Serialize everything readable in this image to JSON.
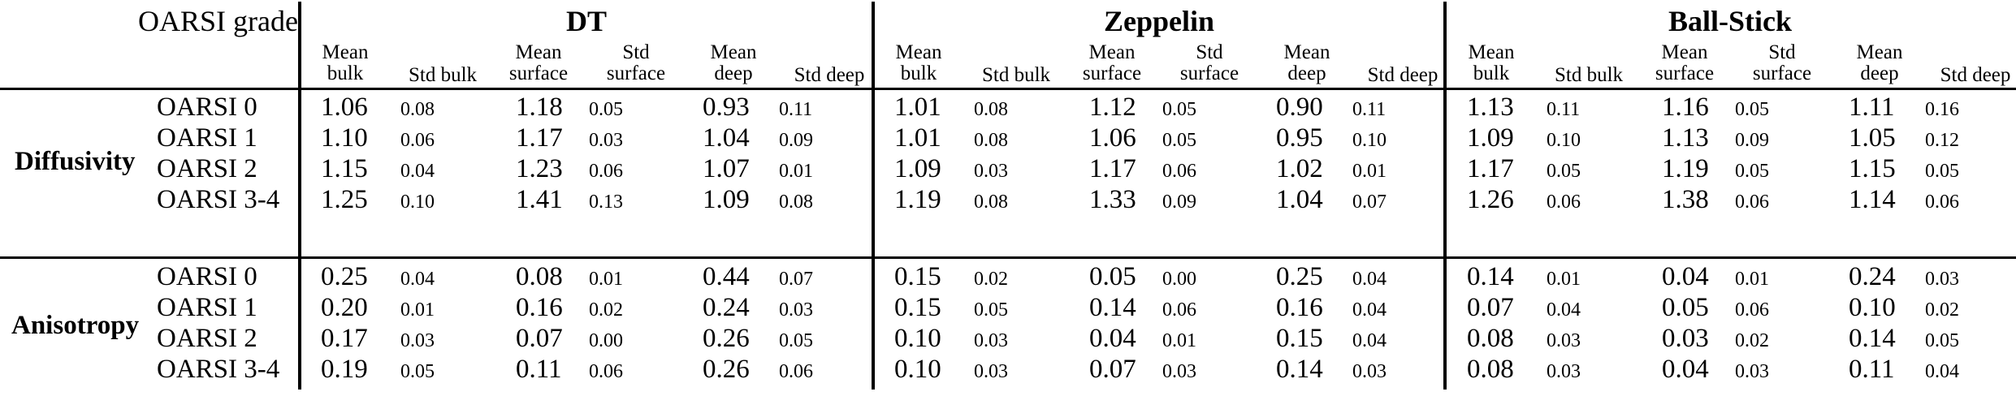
{
  "header": {
    "grade_label": "OARSI grade",
    "models": [
      "DT",
      "Zeppelin",
      "Ball-Stick"
    ],
    "columns": [
      [
        "Mean",
        "bulk"
      ],
      [
        "Std bulk"
      ],
      [
        "Mean",
        "surface"
      ],
      [
        "Std",
        "surface"
      ],
      [
        "Mean",
        "deep"
      ],
      [
        "Std deep"
      ]
    ]
  },
  "groups": [
    {
      "name": "Diffusivity",
      "rows": [
        {
          "grade": "OARSI 0",
          "values": [
            "1.06",
            "0.08",
            "1.18",
            "0.05",
            "0.93",
            "0.11",
            "1.01",
            "0.08",
            "1.12",
            "0.05",
            "0.90",
            "0.11",
            "1.13",
            "0.11",
            "1.16",
            "0.05",
            "1.11",
            "0.16"
          ]
        },
        {
          "grade": "OARSI 1",
          "values": [
            "1.10",
            "0.06",
            "1.17",
            "0.03",
            "1.04",
            "0.09",
            "1.01",
            "0.08",
            "1.06",
            "0.05",
            "0.95",
            "0.10",
            "1.09",
            "0.10",
            "1.13",
            "0.09",
            "1.05",
            "0.12"
          ]
        },
        {
          "grade": "OARSI 2",
          "values": [
            "1.15",
            "0.04",
            "1.23",
            "0.06",
            "1.07",
            "0.01",
            "1.09",
            "0.03",
            "1.17",
            "0.06",
            "1.02",
            "0.01",
            "1.17",
            "0.05",
            "1.19",
            "0.05",
            "1.15",
            "0.05"
          ]
        },
        {
          "grade": "OARSI 3-4",
          "values": [
            "1.25",
            "0.10",
            "1.41",
            "0.13",
            "1.09",
            "0.08",
            "1.19",
            "0.08",
            "1.33",
            "0.09",
            "1.04",
            "0.07",
            "1.26",
            "0.06",
            "1.38",
            "0.06",
            "1.14",
            "0.06"
          ]
        }
      ]
    },
    {
      "name": "Anisotropy",
      "rows": [
        {
          "grade": "OARSI 0",
          "values": [
            "0.25",
            "0.04",
            "0.08",
            "0.01",
            "0.44",
            "0.07",
            "0.15",
            "0.02",
            "0.05",
            "0.00",
            "0.25",
            "0.04",
            "0.14",
            "0.01",
            "0.04",
            "0.01",
            "0.24",
            "0.03"
          ]
        },
        {
          "grade": "OARSI 1",
          "values": [
            "0.20",
            "0.01",
            "0.16",
            "0.02",
            "0.24",
            "0.03",
            "0.15",
            "0.05",
            "0.14",
            "0.06",
            "0.16",
            "0.04",
            "0.07",
            "0.04",
            "0.05",
            "0.06",
            "0.10",
            "0.02"
          ]
        },
        {
          "grade": "OARSI 2",
          "values": [
            "0.17",
            "0.03",
            "0.07",
            "0.00",
            "0.26",
            "0.05",
            "0.10",
            "0.03",
            "0.04",
            "0.01",
            "0.15",
            "0.04",
            "0.08",
            "0.03",
            "0.03",
            "0.02",
            "0.14",
            "0.05"
          ]
        },
        {
          "grade": "OARSI 3-4",
          "values": [
            "0.19",
            "0.05",
            "0.11",
            "0.06",
            "0.26",
            "0.06",
            "0.10",
            "0.03",
            "0.07",
            "0.03",
            "0.14",
            "0.03",
            "0.08",
            "0.03",
            "0.04",
            "0.03",
            "0.11",
            "0.04"
          ]
        }
      ]
    }
  ]
}
